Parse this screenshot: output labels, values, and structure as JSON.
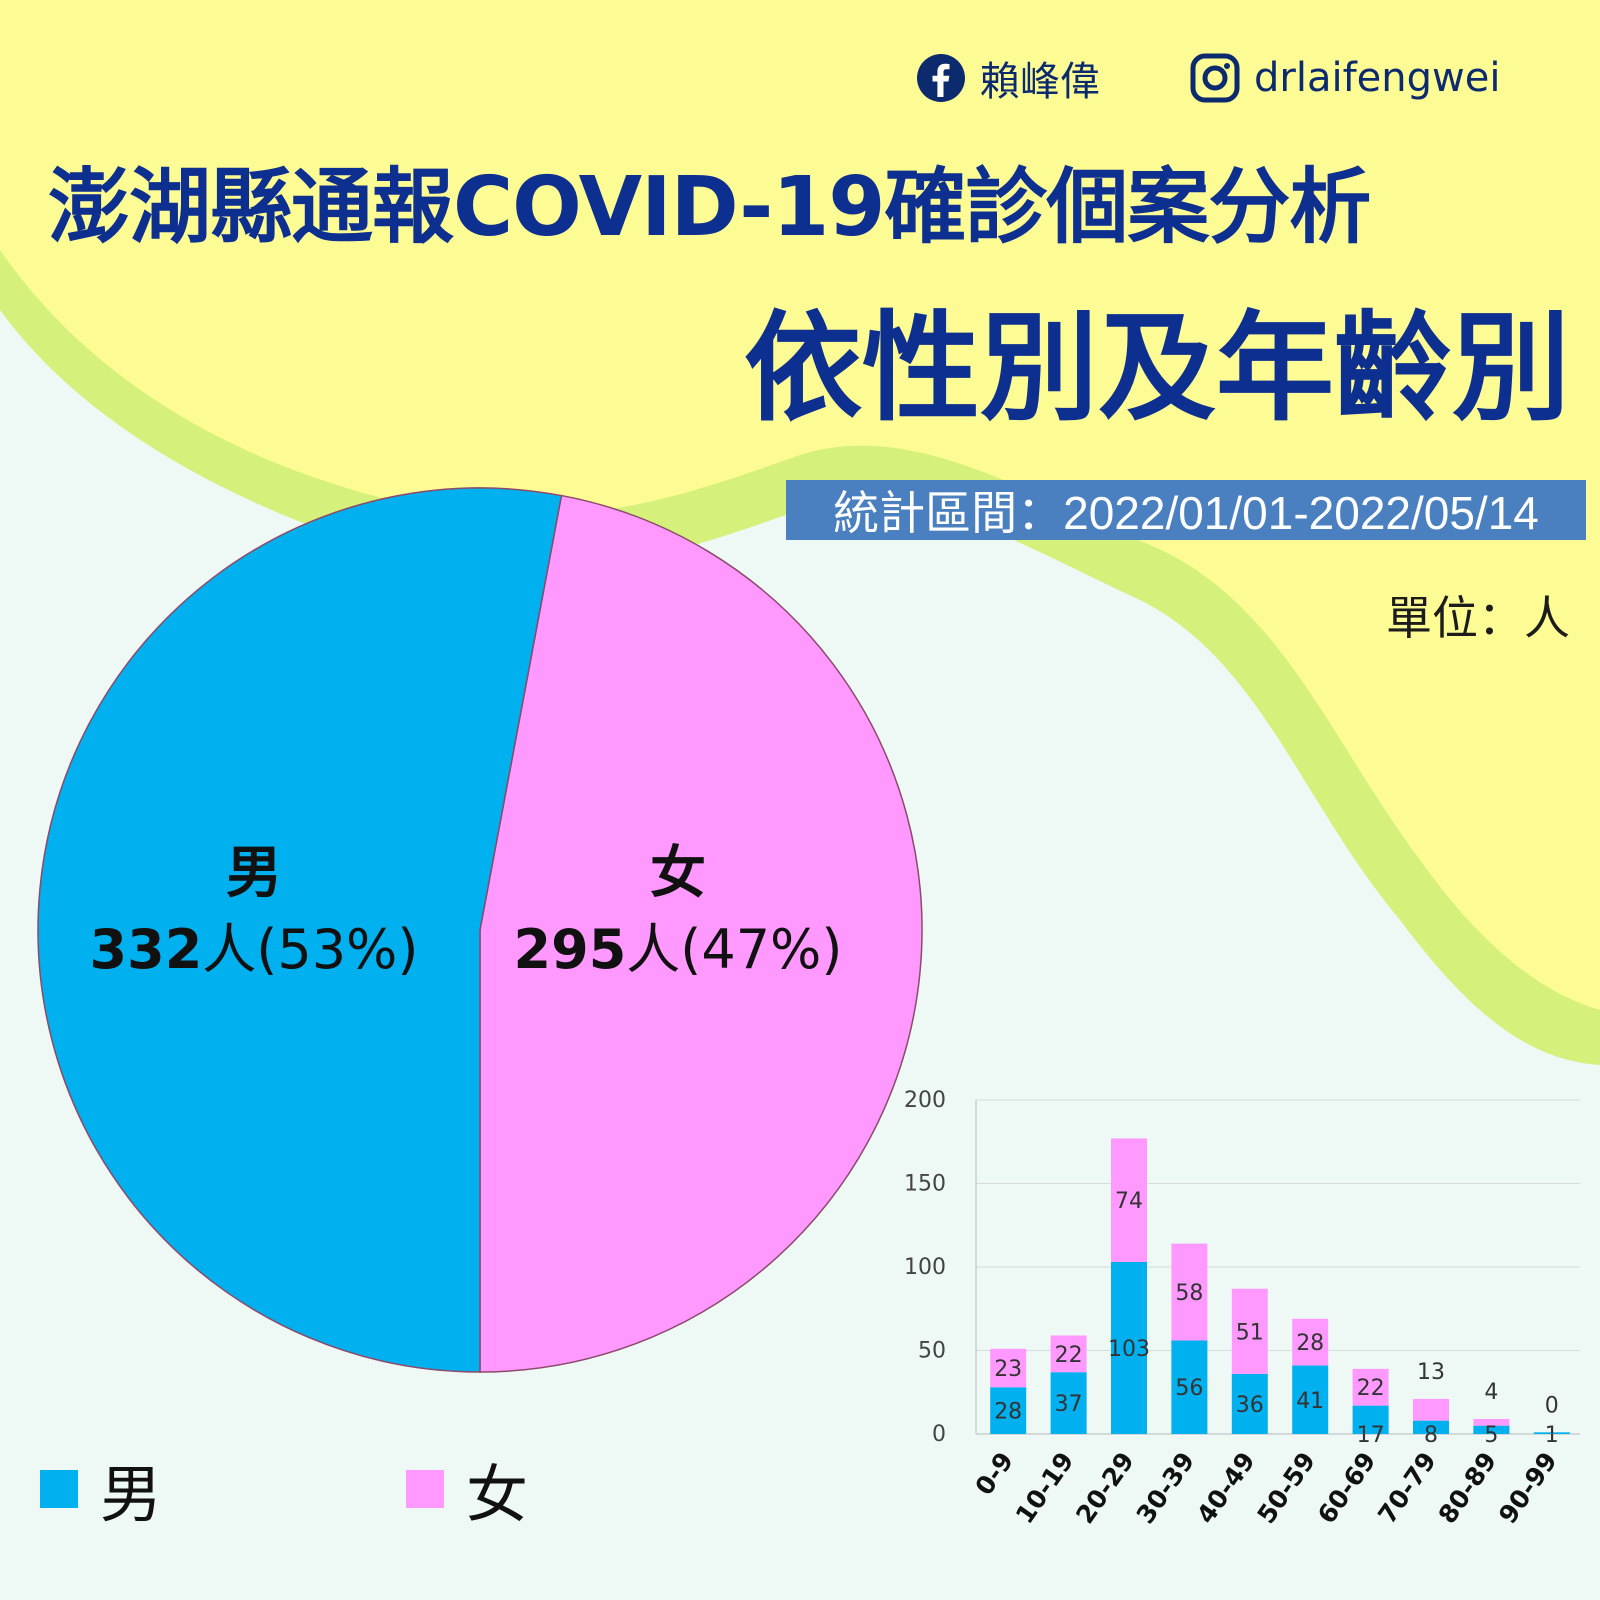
{
  "social": {
    "facebook_name": "賴峰偉",
    "instagram_handle": "drlaifengwei"
  },
  "header": {
    "title": "澎湖縣通報COVID-19確診個案分析",
    "subtitle": "依性別及年齡別",
    "period": "統計區間：2022/01/01-2022/05/14",
    "unit": "單位：人"
  },
  "colors": {
    "male": "#00b0ef",
    "female": "#ff99ff",
    "title": "#0d2f8f",
    "period_bg": "#4a80bf",
    "yellow_bg": "#fdfb93",
    "green_band": "#d6f07c"
  },
  "pie": {
    "male": {
      "name": "男",
      "count": "332",
      "rest": "人(53%)"
    },
    "female": {
      "name": "女",
      "count": "295",
      "rest": "人(47%)"
    }
  },
  "legend": {
    "male": "男",
    "female": "女"
  },
  "chart_data": [
    {
      "type": "pie",
      "categories": [
        "男",
        "女"
      ],
      "values": [
        332,
        295
      ],
      "percent": [
        53,
        47
      ],
      "colors": [
        "#00b0ef",
        "#ff99ff"
      ],
      "legend_position": "bottom"
    },
    {
      "type": "bar",
      "stacked": true,
      "categories": [
        "0-9",
        "10-19",
        "20-29",
        "30-39",
        "40-49",
        "50-59",
        "60-69",
        "70-79",
        "80-89",
        "90-99"
      ],
      "series": [
        {
          "name": "男",
          "values": [
            28,
            37,
            103,
            56,
            36,
            41,
            17,
            8,
            5,
            1
          ]
        },
        {
          "name": "女",
          "values": [
            23,
            22,
            74,
            58,
            51,
            28,
            22,
            13,
            4,
            0
          ]
        }
      ],
      "yticks": [
        0,
        50,
        100,
        150,
        200
      ],
      "ylim": [
        0,
        200
      ],
      "grid": true
    }
  ]
}
